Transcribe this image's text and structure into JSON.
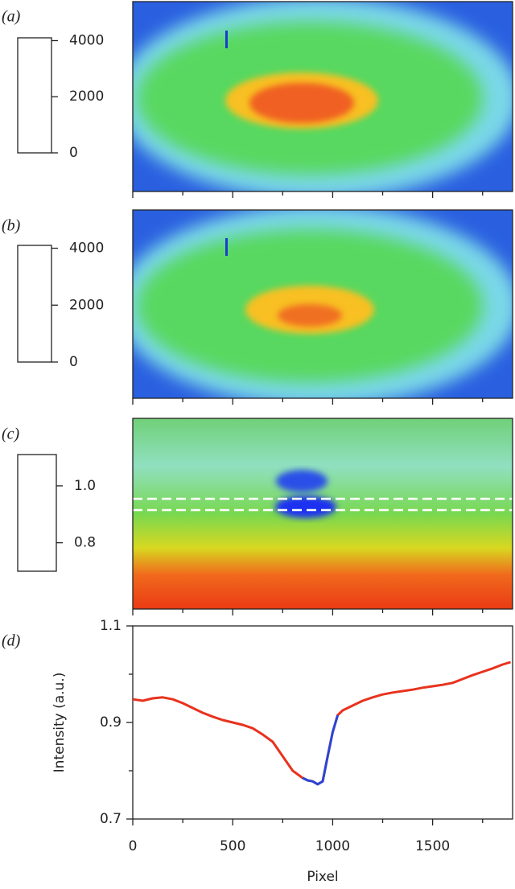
{
  "chart_data": [
    {
      "type": "heatmap",
      "label": "(a)",
      "colorbar_lim": [
        0,
        4100
      ],
      "colorbar_ticks": [
        0,
        2000,
        4000
      ]
    },
    {
      "type": "heatmap",
      "label": "(b)",
      "colorbar_lim": [
        0,
        4100
      ],
      "colorbar_ticks": [
        0,
        2000,
        4000
      ]
    },
    {
      "type": "heatmap",
      "label": "(c)",
      "colorbar_lim": [
        0.7,
        1.11
      ],
      "colorbar_ticks": [
        0.8,
        {
          "value": 1,
          "label": "1.0"
        }
      ]
    },
    {
      "type": "line",
      "label": "(d)",
      "xlabel": "Pixel",
      "ylabel": "Intensity (a.u.)",
      "x": [
        0,
        50,
        100,
        150,
        200,
        250,
        300,
        350,
        400,
        450,
        500,
        550,
        600,
        650,
        700,
        750,
        800,
        850,
        875,
        900,
        925,
        950,
        975,
        1000,
        1025,
        1050,
        1100,
        1150,
        1200,
        1250,
        1300,
        1350,
        1400,
        1450,
        1500,
        1550,
        1600,
        1650,
        1700,
        1750,
        1800,
        1850,
        1890
      ],
      "series": [
        {
          "color": "#e8321e",
          "values": [
            0.948,
            0.945,
            0.95,
            0.952,
            0.948,
            0.94,
            0.93,
            0.92,
            0.912,
            0.905,
            0.9,
            0.895,
            0.888,
            0.875,
            0.86,
            0.83,
            0.8,
            0.785,
            0.78,
            0.778,
            0.772,
            0.778,
            0.83,
            0.88,
            0.915,
            0.925,
            0.935,
            0.945,
            0.952,
            0.958,
            0.962,
            0.965,
            0.968,
            0.972,
            0.975,
            0.978,
            0.982,
            0.99,
            0.998,
            1.005,
            1.012,
            1.02,
            1.025
          ]
        },
        {
          "color": "#2b45d6",
          "values": [
            null,
            null,
            null,
            null,
            null,
            null,
            null,
            null,
            null,
            null,
            null,
            null,
            null,
            null,
            null,
            null,
            null,
            0.785,
            0.78,
            0.778,
            0.772,
            0.778,
            0.83,
            0.88,
            0.915,
            null,
            null,
            null,
            null,
            null,
            null,
            null,
            null,
            null,
            null,
            null,
            null,
            null,
            null,
            null,
            null,
            null,
            null
          ]
        }
      ],
      "xlim": [
        0,
        1900
      ],
      "ylim": [
        0.7,
        1.1
      ],
      "xticks": [
        0,
        500,
        1000,
        1500
      ],
      "yticks": [
        0.7,
        0.9,
        1.1
      ]
    }
  ]
}
